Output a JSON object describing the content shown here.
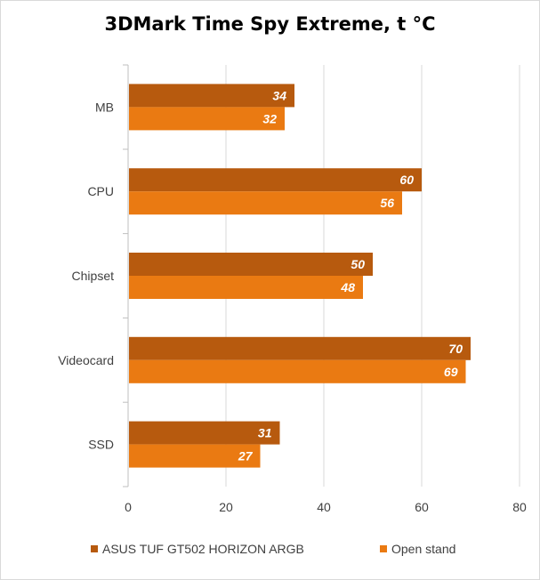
{
  "chart_data": {
    "type": "bar",
    "orientation": "horizontal",
    "title": "3DMark Time Spy Extreme, t °C",
    "categories": [
      "MB",
      "CPU",
      "Chipset",
      "Videocard",
      "SSD"
    ],
    "series": [
      {
        "name": "ASUS TUF GT502 HORIZON ARGB",
        "values": [
          34,
          60,
          50,
          70,
          31
        ],
        "color": "#b75a0e"
      },
      {
        "name": "Open stand",
        "values": [
          32,
          56,
          48,
          69,
          27
        ],
        "color": "#ea7a12"
      }
    ],
    "xlim": [
      0,
      80
    ],
    "xticks": [
      0,
      20,
      40,
      60,
      80
    ],
    "grid": true,
    "legend_position": "bottom",
    "data_labels": true,
    "data_label_color": "#ffffff"
  }
}
